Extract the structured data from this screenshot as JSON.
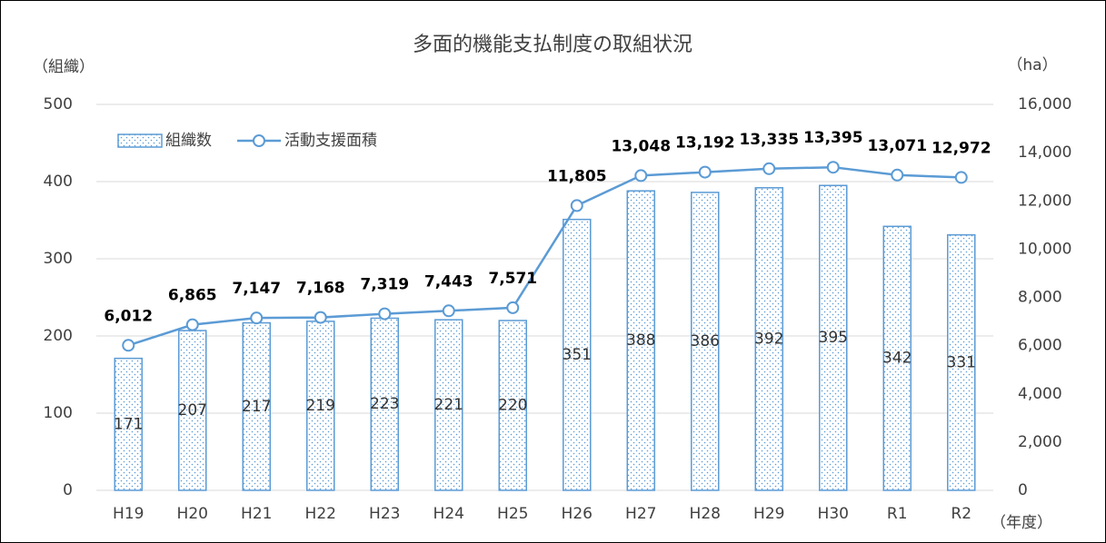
{
  "chart_data": {
    "type": "bar",
    "title": "多面的機能支払制度の取組状況",
    "y_label": "（組織）",
    "y2_label": "（ha）",
    "x_label": "（年度）",
    "categories": [
      "H19",
      "H20",
      "H21",
      "H22",
      "H23",
      "H24",
      "H25",
      "H26",
      "H27",
      "H28",
      "H29",
      "H30",
      "R1",
      "R2"
    ],
    "series": [
      {
        "name": "組織数",
        "type": "bar",
        "color": "#5b9bd5",
        "axis": "y",
        "values": [
          171,
          207,
          217,
          219,
          223,
          221,
          220,
          351,
          388,
          386,
          392,
          395,
          342,
          331
        ]
      },
      {
        "name": "活動支援面積",
        "type": "line",
        "color": "#5b9bd5",
        "axis": "y2",
        "values": [
          6012,
          6865,
          7147,
          7168,
          7319,
          7443,
          7571,
          11805,
          13048,
          13192,
          13335,
          13395,
          13071,
          12972
        ],
        "value_labels": [
          "6,012",
          "6,865",
          "7,147",
          "7,168",
          "7,319",
          "7,443",
          "7,571",
          "11,805",
          "13,048",
          "13,192",
          "13,335",
          "13,395",
          "13,071",
          "12,972"
        ]
      }
    ],
    "ylim": [
      0,
      500
    ],
    "yticks": [
      0,
      100,
      200,
      300,
      400,
      500
    ],
    "y2lim": [
      0,
      16000
    ],
    "y2ticks": [
      0,
      {
        "value": 2000,
        "label": "2,000"
      },
      {
        "value": 4000,
        "label": "4,000"
      },
      {
        "value": 6000,
        "label": "6,000"
      },
      {
        "value": 8000,
        "label": "8,000"
      },
      {
        "value": 10000,
        "label": "10,000"
      },
      {
        "value": 12000,
        "label": "12,000"
      },
      {
        "value": 14000,
        "label": "14,000"
      },
      {
        "value": 16000,
        "label": "16,000"
      }
    ],
    "grid": true,
    "legend": "upper left"
  }
}
